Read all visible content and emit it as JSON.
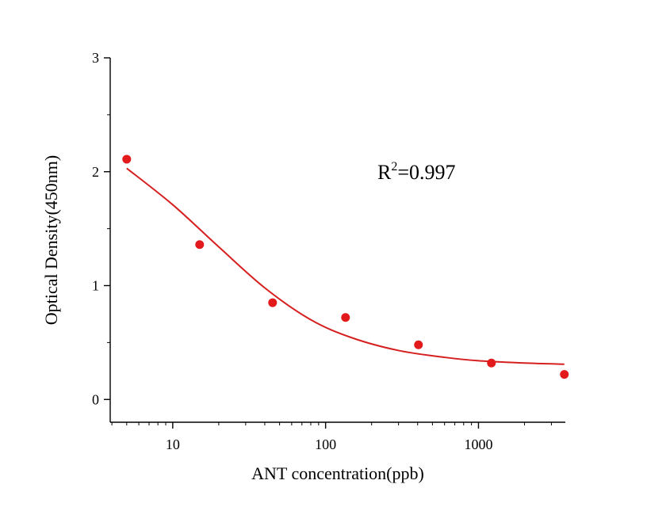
{
  "chart_data": {
    "type": "scatter",
    "title": "",
    "xlabel": "ANT  concentration(ppb)",
    "ylabel": "Optical Density(450nm)",
    "xscale": "log",
    "xlim": [
      3.9,
      3700
    ],
    "ylim": [
      -0.2,
      3
    ],
    "x_ticks": [
      10,
      100,
      1000
    ],
    "y_ticks": [
      0,
      1,
      2,
      3
    ],
    "grid": false,
    "legend": "none",
    "annotation": {
      "prefix": "R",
      "sup": "2",
      "suffix": "=0.997"
    },
    "colors": {
      "points": "#e31a1c",
      "curve": "#d62020",
      "axis": "#000000"
    },
    "series": [
      {
        "mode": "markers",
        "x": [
          5,
          15,
          45,
          135,
          405,
          1215,
          3645
        ],
        "y": [
          2.11,
          1.36,
          0.85,
          0.72,
          0.48,
          0.32,
          0.22
        ]
      },
      {
        "mode": "line",
        "x": [
          5,
          10,
          20,
          40,
          80,
          150,
          300,
          600,
          1000,
          2000,
          3645
        ],
        "y": [
          2.03,
          1.71,
          1.34,
          0.98,
          0.7,
          0.54,
          0.43,
          0.37,
          0.34,
          0.32,
          0.31
        ]
      }
    ]
  }
}
